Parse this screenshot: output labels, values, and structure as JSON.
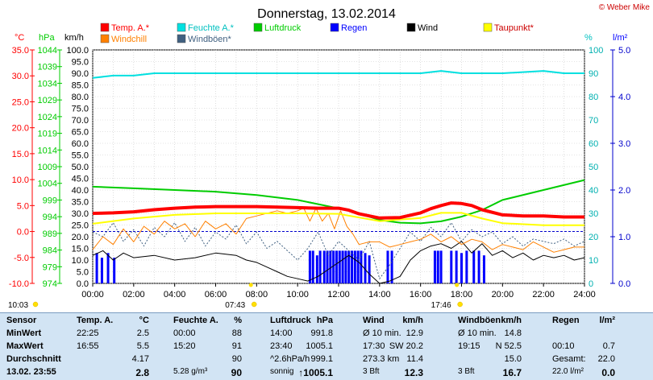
{
  "chart_data": {
    "type": "line",
    "title": "Donnerstag, 13.02.2014",
    "credit": "© Weber Mike",
    "x_ticks": [
      "00:00",
      "02:00",
      "04:00",
      "06:00",
      "08:00",
      "10:00",
      "12:00",
      "14:00",
      "16:00",
      "18:00",
      "20:00",
      "22:00",
      "24:00"
    ],
    "xlim": [
      0,
      24
    ],
    "grid": true,
    "legend": [
      {
        "label": "Temp. A.*",
        "color": "#ff0000"
      },
      {
        "label": "Feuchte A.*",
        "color": "#00e0e0"
      },
      {
        "label": "Luftdruck",
        "color": "#00cc00"
      },
      {
        "label": "Regen",
        "color": "#0000ff"
      },
      {
        "label": "Wind",
        "color": "#000000"
      },
      {
        "label": "Taupunkt*",
        "color": "#ffff00"
      },
      {
        "label": "Windchill",
        "color": "#ff8000"
      },
      {
        "label": "Windböen*",
        "color": "#406080"
      }
    ],
    "axes": {
      "temp": {
        "unit": "°C",
        "ticks": [
          "35.0",
          "30.0",
          "25.0",
          "20.0",
          "15.0",
          "10.0",
          "5.0",
          "0.0",
          "-5.0",
          "-10.0"
        ],
        "range": [
          -10,
          35
        ],
        "color": "#ff0000"
      },
      "pressure": {
        "unit": "hPa",
        "ticks": [
          "1044",
          "1039",
          "1034",
          "1029",
          "1024",
          "1019",
          "1014",
          "1009",
          "1004",
          "999",
          "994",
          "989",
          "984",
          "979",
          "974"
        ],
        "range": [
          974,
          1044
        ],
        "color": "#00cc00"
      },
      "wind": {
        "unit": "km/h",
        "ticks": [
          "100.0",
          "95.0",
          "90.0",
          "85.0",
          "80.0",
          "75.0",
          "70.0",
          "65.0",
          "60.0",
          "55.0",
          "50.0",
          "45.0",
          "40.0",
          "35.0",
          "30.0",
          "25.0",
          "20.0",
          "15.0",
          "10.0",
          "5.0",
          "0.0"
        ],
        "range": [
          0,
          100
        ],
        "color": "#000000"
      },
      "humidity": {
        "unit": "%",
        "ticks": [
          "100",
          "90",
          "80",
          "70",
          "60",
          "50",
          "40",
          "30",
          "20",
          "10",
          "0"
        ],
        "range": [
          0,
          100
        ],
        "color": "#00e0e0"
      },
      "rain": {
        "unit": "l/m²",
        "ticks": [
          "5.0",
          "4.0",
          "3.0",
          "2.0",
          "1.0",
          "0.0"
        ],
        "range": [
          0,
          5
        ],
        "color": "#0000ff"
      }
    },
    "series": [
      {
        "name": "Temp. A.*",
        "axis": "temp",
        "color": "#ff0000",
        "width": 4,
        "x": [
          0,
          1,
          2,
          3,
          4,
          5,
          6,
          7,
          8,
          9,
          10,
          11,
          12,
          12.5,
          13,
          14,
          15,
          16,
          16.5,
          17,
          17.5,
          18,
          18.5,
          19,
          20,
          21,
          22,
          23,
          24
        ],
        "y": [
          3.5,
          3.6,
          3.8,
          4.2,
          4.5,
          4.7,
          4.8,
          4.8,
          4.8,
          4.7,
          4.6,
          4.5,
          4.5,
          4.1,
          3.4,
          2.6,
          2.7,
          3.6,
          4.4,
          5.0,
          5.5,
          5.4,
          5.0,
          4.2,
          3.2,
          3.0,
          3.0,
          2.8,
          2.8
        ]
      },
      {
        "name": "Feuchte A.*",
        "axis": "humidity",
        "color": "#00e0e0",
        "width": 2,
        "x": [
          0,
          1,
          2,
          3,
          4,
          6,
          8,
          10,
          12,
          14,
          16,
          17,
          18,
          20,
          22,
          23,
          24
        ],
        "y": [
          88,
          89,
          89,
          90,
          90,
          90,
          90,
          90,
          90,
          90,
          90,
          91,
          90,
          90,
          91,
          90,
          90
        ]
      },
      {
        "name": "Luftdruck",
        "axis": "pressure",
        "color": "#00cc00",
        "width": 2,
        "x": [
          0,
          2,
          4,
          6,
          8,
          10,
          12,
          13,
          14,
          15,
          16,
          17,
          18,
          19,
          20,
          22,
          24
        ],
        "y": [
          1003,
          1002.5,
          1002,
          1001.5,
          1000.5,
          999,
          996.5,
          995,
          993,
          992.2,
          992,
          992.6,
          994,
          996,
          999,
          1002,
          1005
        ]
      },
      {
        "name": "Taupunkt*",
        "axis": "temp",
        "color": "#ffff00",
        "width": 2,
        "x": [
          0,
          2,
          4,
          6,
          8,
          10,
          12,
          14,
          16,
          17,
          18,
          19,
          20,
          22,
          24
        ],
        "y": [
          1.5,
          2.5,
          3.2,
          3.5,
          3.5,
          3.5,
          3.4,
          2.0,
          2.6,
          3.6,
          3.6,
          2.5,
          1.6,
          1.2,
          1.2
        ]
      },
      {
        "name": "Windchill",
        "axis": "temp",
        "color": "#ff8000",
        "width": 1,
        "x": [
          0,
          0.5,
          1,
          1.5,
          2,
          2.5,
          3,
          3.5,
          4,
          4.5,
          5,
          5.5,
          6,
          6.5,
          7,
          7.5,
          8,
          8.5,
          9,
          9.5,
          10,
          10.3,
          10.6,
          10.9,
          11.2,
          11.5,
          11.8,
          12.1,
          12.4,
          12.7,
          13,
          13.5,
          14,
          14.5,
          15,
          15.5,
          16,
          16.5,
          17,
          17.5,
          18,
          18.5,
          19,
          19.5,
          20,
          20.5,
          21,
          21.5,
          22,
          22.5,
          23,
          23.5,
          24
        ],
        "y": [
          -3.5,
          -1.0,
          -2.5,
          0.5,
          -2.0,
          1.0,
          -0.5,
          2.0,
          0.5,
          1.5,
          -1.0,
          2.0,
          0.5,
          1.5,
          -0.5,
          2.5,
          3.0,
          3.5,
          4.0,
          3.5,
          4.0,
          4.5,
          2.0,
          4.5,
          2.0,
          3.5,
          0.5,
          4.0,
          1.0,
          -0.5,
          -2.5,
          -2.0,
          -2.0,
          -3.0,
          -2.5,
          -2.0,
          -1.5,
          -0.5,
          -2.0,
          -1.0,
          -2.5,
          -1.5,
          -2.0,
          -3.5,
          -2.5,
          -3.0,
          -3.5,
          -2.0,
          -3.0,
          -4.0,
          -3.5,
          -3.0,
          -3.0
        ]
      },
      {
        "name": "Wind",
        "axis": "wind",
        "color": "#000000",
        "width": 1,
        "x": [
          0,
          0.5,
          1,
          1.5,
          2,
          3,
          4,
          5,
          6,
          7,
          7.5,
          8,
          8.5,
          9,
          9.5,
          10,
          10.5,
          11,
          11.5,
          12,
          12.5,
          13,
          13.5,
          14,
          14.5,
          15,
          15.5,
          16,
          16.5,
          17,
          17.5,
          18,
          18.5,
          19,
          19.5,
          20,
          20.5,
          21,
          21.5,
          22,
          22.5,
          23,
          23.5,
          24
        ],
        "y": [
          12,
          14,
          10,
          13,
          11,
          12,
          10,
          11,
          13,
          12,
          10,
          9,
          7,
          5,
          3,
          2,
          1,
          3,
          6,
          9,
          12,
          9,
          4,
          0,
          1,
          3,
          10,
          14,
          16,
          17,
          15,
          18,
          13,
          17,
          12,
          14,
          11,
          13,
          10,
          12,
          11,
          12,
          10,
          11
        ]
      },
      {
        "name": "Windböen*",
        "axis": "wind",
        "color": "#406080",
        "width": 1,
        "dash": "2,2",
        "x": [
          0,
          0.5,
          1,
          1.5,
          2,
          2.5,
          3,
          3.5,
          4,
          4.5,
          5,
          5.5,
          6,
          6.5,
          7,
          7.5,
          8,
          8.5,
          9,
          9.5,
          10,
          10.5,
          11,
          11.5,
          12,
          12.5,
          13,
          13.5,
          14,
          14.5,
          15,
          15.5,
          16,
          16.5,
          17,
          17.5,
          18,
          18.5,
          19,
          19.5,
          20,
          20.5,
          21,
          21.5,
          22,
          22.5,
          23,
          23.5,
          24
        ],
        "y": [
          22,
          20,
          26,
          18,
          23,
          16,
          24,
          20,
          26,
          18,
          24,
          16,
          22,
          19,
          25,
          17,
          22,
          15,
          18,
          14,
          10,
          15,
          22,
          12,
          18,
          14,
          10,
          18,
          2,
          8,
          15,
          22,
          18,
          24,
          20,
          26,
          18,
          23,
          20,
          22,
          17,
          20,
          16,
          19,
          18,
          17,
          19,
          16,
          18
        ]
      }
    ],
    "rain_bars": {
      "axis": "rain",
      "color": "#0000ff",
      "x": [
        0.2,
        0.45,
        0.75,
        1.05,
        10.6,
        10.75,
        10.95,
        11.1,
        11.3,
        11.45,
        11.6,
        11.75,
        11.9,
        12.05,
        12.2,
        12.35,
        12.5,
        12.65,
        12.8,
        12.95,
        13.1,
        13.3,
        13.5,
        14.4,
        14.6,
        16.7,
        16.85,
        17.0,
        17.5,
        17.75,
        18.0,
        18.25,
        18.6,
        18.85,
        19.1
      ],
      "y": [
        0.65,
        0.55,
        0.65,
        0.55,
        0.7,
        0.7,
        0.6,
        0.7,
        0.7,
        0.7,
        0.7,
        0.7,
        0.7,
        0.7,
        0.7,
        0.7,
        0.7,
        0.7,
        0.7,
        0.7,
        0.7,
        0.65,
        0.6,
        0.7,
        0.7,
        0.7,
        0.7,
        0.7,
        0.7,
        0.7,
        0.65,
        0.7,
        0.7,
        0.7,
        0.6
      ]
    },
    "sun_markers": [
      {
        "label": "10:03",
        "x": 0.05
      },
      {
        "label": "07:43",
        "x": 7.72
      },
      {
        "label": "17:46",
        "x": 17.77
      }
    ]
  },
  "stats": {
    "headers": {
      "sensor": "Sensor",
      "temp": "Temp. A.",
      "temp_unit": "°C",
      "hum": "Feuchte A.",
      "hum_unit": "%",
      "press": "Luftdruck",
      "press_unit": "hPa",
      "wind": "Wind",
      "wind_unit": "km/h",
      "gust": "Windböen",
      "gust_unit": "km/h",
      "rain": "Regen",
      "rain_unit": "l/m²"
    },
    "rows": [
      {
        "label": "MinWert",
        "temp_time": "22:25",
        "temp_val": "2.5",
        "hum_time": "00:00",
        "hum_val": "88",
        "press_time": "14:00",
        "press_val": "991.8",
        "wind_time": "Ø 10 min.",
        "wind_val": "12.9",
        "gust_time": "Ø 10 min.",
        "gust_val": "14.8",
        "rain_time": "",
        "rain_val": ""
      },
      {
        "label": "MaxWert",
        "temp_time": "16:55",
        "temp_val": "5.5",
        "hum_time": "15:20",
        "hum_val": "91",
        "press_time": "23:40",
        "press_val": "1005.1",
        "wind_time": "17:30",
        "wind_val": "SW 20.2",
        "gust_time": "19:15",
        "gust_val": "N 52.5",
        "rain_time": "00:10",
        "rain_val": "0.7"
      },
      {
        "label": "Durchschnitt",
        "temp_time": "",
        "temp_val": "4.17",
        "hum_time": "",
        "hum_val": "90",
        "press_time": "^2.6hPa/h",
        "press_val": "999.1",
        "wind_time": "273.3 km",
        "wind_val": "11.4",
        "gust_time": "",
        "gust_val": "15.0",
        "rain_time": "Gesamt:",
        "rain_val": "22.0"
      },
      {
        "label": "13.02. 23:55",
        "temp_time": "",
        "temp_val": "2.8",
        "hum_time": "5.28 g/m³",
        "hum_val": "90",
        "press_time": "sonnig",
        "press_val": "↑1005.1",
        "wind_time": "3 Bft",
        "wind_val": "12.3",
        "gust_time": "3 Bft",
        "gust_val": "16.7",
        "rain_time": "22.0 l/m²",
        "rain_val": "0.0"
      }
    ]
  }
}
